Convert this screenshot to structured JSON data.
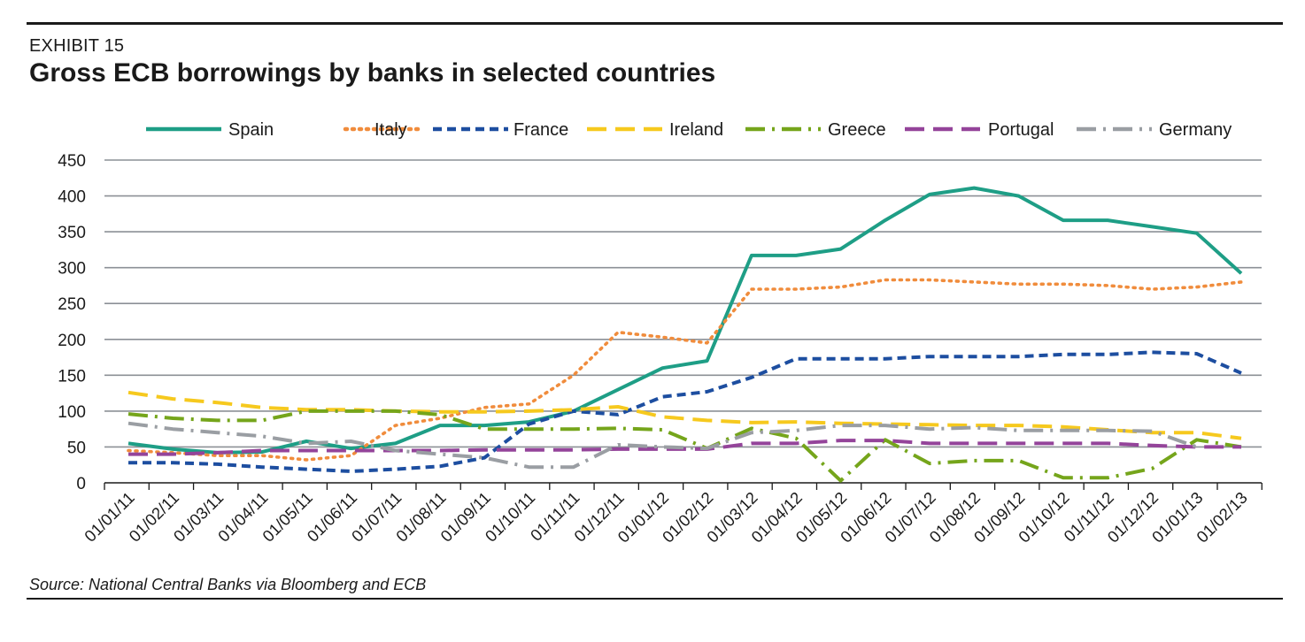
{
  "header": {
    "exhibit": "EXHIBIT 15",
    "title": "Gross ECB borrowings by banks in selected countries"
  },
  "footer": {
    "source": "Source: National Central Banks via Bloomberg  and ECB"
  },
  "chart_data": {
    "type": "line",
    "title": "Gross ECB borrowings by banks in selected countries",
    "xlabel": "",
    "ylabel": "",
    "ylim": [
      0,
      450
    ],
    "yticks": [
      0,
      50,
      100,
      150,
      200,
      250,
      300,
      350,
      400,
      450
    ],
    "grid": "horizontal",
    "legend_position": "top",
    "x": [
      "01/01/11",
      "01/02/11",
      "01/03/11",
      "01/04/11",
      "01/05/11",
      "01/06/11",
      "01/07/11",
      "01/08/11",
      "01/09/11",
      "01/10/11",
      "01/11/11",
      "01/12/11",
      "01/01/12",
      "01/02/12",
      "01/03/12",
      "01/04/12",
      "01/05/12",
      "01/06/12",
      "01/07/12",
      "01/08/12",
      "01/09/12",
      "01/10/12",
      "01/11/12",
      "01/12/12",
      "01/01/13",
      "01/02/13"
    ],
    "series": [
      {
        "name": "Spain",
        "color": "#1e9e86",
        "dash": "solid",
        "values": [
          55,
          47,
          42,
          43,
          58,
          48,
          55,
          80,
          80,
          85,
          100,
          130,
          160,
          170,
          317,
          317,
          326,
          366,
          402,
          411,
          400,
          366,
          366,
          357,
          348,
          292
        ]
      },
      {
        "name": "Italy",
        "color": "#f08c3c",
        "dash": "dot",
        "values": [
          45,
          42,
          38,
          38,
          32,
          38,
          80,
          90,
          105,
          110,
          150,
          210,
          203,
          195,
          270,
          270,
          273,
          283,
          283,
          280,
          277,
          277,
          275,
          270,
          273,
          280
        ]
      },
      {
        "name": "France",
        "color": "#1d4ea0",
        "dash": "dash",
        "values": [
          28,
          28,
          26,
          22,
          19,
          16,
          19,
          23,
          35,
          82,
          100,
          95,
          120,
          127,
          147,
          173,
          173,
          173,
          176,
          176,
          176,
          179,
          179,
          182,
          180,
          153
        ]
      },
      {
        "name": "Ireland",
        "color": "#f6c91e",
        "dash": "longdash",
        "values": [
          126,
          117,
          112,
          105,
          102,
          102,
          100,
          99,
          99,
          100,
          102,
          106,
          92,
          87,
          84,
          85,
          83,
          82,
          81,
          80,
          80,
          78,
          74,
          70,
          70,
          62
        ]
      },
      {
        "name": "Greece",
        "color": "#75a51b",
        "dash": "dashdot",
        "values": [
          96,
          90,
          87,
          87,
          100,
          100,
          100,
          95,
          75,
          75,
          75,
          76,
          74,
          48,
          76,
          62,
          3,
          60,
          27,
          31,
          31,
          7,
          7,
          20,
          60,
          50
        ]
      },
      {
        "name": "Portugal",
        "color": "#94449a",
        "dash": "longdash",
        "values": [
          40,
          40,
          42,
          45,
          45,
          45,
          45,
          45,
          46,
          46,
          46,
          47,
          47,
          47,
          55,
          55,
          59,
          59,
          55,
          55,
          55,
          55,
          55,
          52,
          50,
          50
        ]
      },
      {
        "name": "Germany",
        "color": "#9a9ea3",
        "dash": "dashdot",
        "values": [
          83,
          75,
          70,
          65,
          55,
          58,
          45,
          40,
          35,
          22,
          22,
          53,
          50,
          48,
          70,
          73,
          80,
          80,
          75,
          77,
          73,
          73,
          73,
          72,
          50,
          null
        ]
      }
    ]
  }
}
